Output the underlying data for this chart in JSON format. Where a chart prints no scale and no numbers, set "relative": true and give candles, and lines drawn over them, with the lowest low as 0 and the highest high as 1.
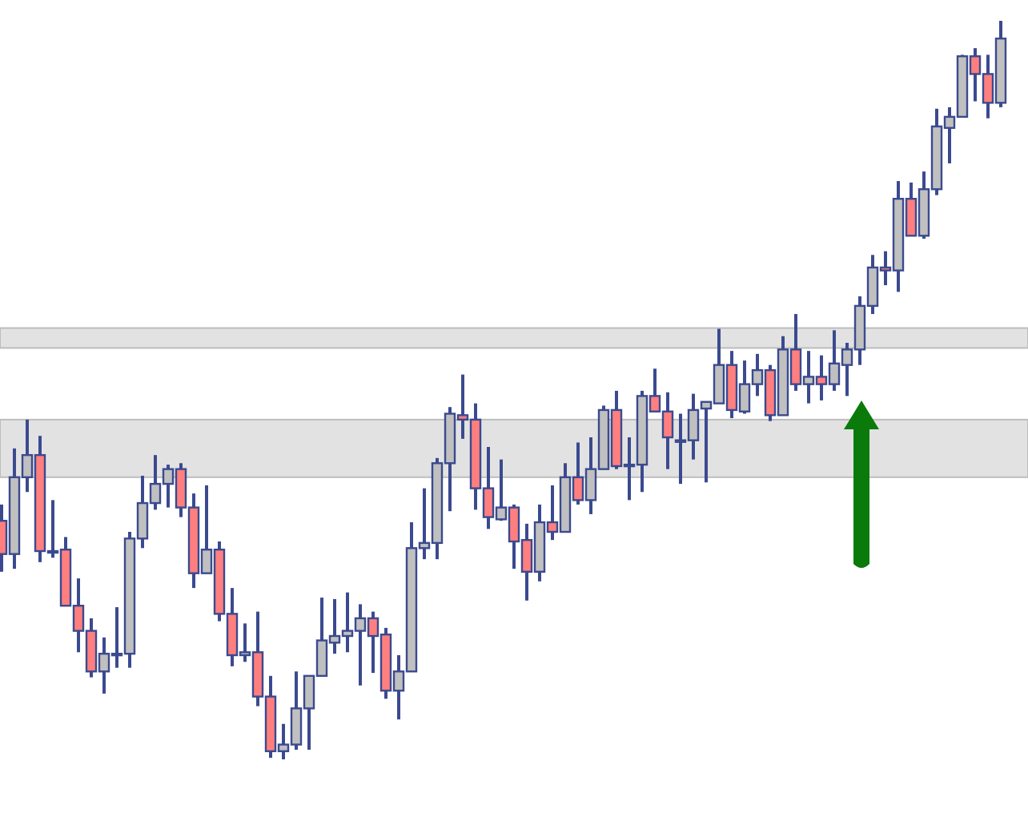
{
  "chart_data": {
    "type": "candlestick",
    "relative": true,
    "categories": [
      null,
      null,
      null,
      null,
      null,
      null,
      null,
      null,
      null,
      null,
      null,
      null,
      null,
      null,
      null,
      null,
      null,
      null,
      null,
      null,
      null,
      null,
      null,
      null,
      null,
      null,
      null,
      null,
      null,
      null,
      null,
      null,
      null,
      null,
      null,
      null,
      null,
      null,
      null,
      null,
      null,
      null,
      null,
      null,
      null,
      null,
      null,
      null,
      null,
      null,
      null,
      null,
      null,
      null,
      null,
      null,
      null,
      null,
      null,
      null,
      null,
      null,
      null,
      null,
      null,
      null,
      null,
      null,
      null,
      null,
      null,
      null,
      null,
      null,
      null,
      null,
      null,
      null,
      null
    ],
    "ohlc": [
      [
        0.323,
        0.345,
        0.254,
        0.278
      ],
      [
        0.278,
        0.421,
        0.258,
        0.382
      ],
      [
        0.382,
        0.46,
        0.362,
        0.412
      ],
      [
        0.412,
        0.438,
        0.267,
        0.282
      ],
      [
        0.282,
        0.351,
        0.273,
        0.282
      ],
      [
        0.284,
        0.301,
        0.208,
        0.208
      ],
      [
        0.208,
        0.245,
        0.145,
        0.174
      ],
      [
        0.174,
        0.191,
        0.111,
        0.119
      ],
      [
        0.119,
        0.165,
        0.089,
        0.143
      ],
      [
        0.143,
        0.206,
        0.124,
        0.143
      ],
      [
        0.143,
        0.308,
        0.124,
        0.299
      ],
      [
        0.299,
        0.384,
        0.286,
        0.347
      ],
      [
        0.347,
        0.412,
        0.338,
        0.373
      ],
      [
        0.373,
        0.399,
        0.341,
        0.393
      ],
      [
        0.393,
        0.401,
        0.328,
        0.341
      ],
      [
        0.341,
        0.36,
        0.232,
        0.252
      ],
      [
        0.252,
        0.371,
        0.252,
        0.284
      ],
      [
        0.284,
        0.295,
        0.187,
        0.197
      ],
      [
        0.197,
        0.232,
        0.126,
        0.141
      ],
      [
        0.141,
        0.184,
        0.132,
        0.145
      ],
      [
        0.145,
        0.2,
        0.072,
        0.085
      ],
      [
        0.085,
        0.113,
        0.002,
        0.011
      ],
      [
        0.011,
        0.048,
        0,
        0.02
      ],
      [
        0.02,
        0.119,
        0.013,
        0.069
      ],
      [
        0.069,
        0.113,
        0.013,
        0.113
      ],
      [
        0.113,
        0.219,
        0.113,
        0.161
      ],
      [
        0.158,
        0.217,
        0.143,
        0.167
      ],
      [
        0.167,
        0.226,
        0.145,
        0.174
      ],
      [
        0.174,
        0.21,
        0.1,
        0.191
      ],
      [
        0.191,
        0.2,
        0.117,
        0.167
      ],
      [
        0.169,
        0.178,
        0.082,
        0.093
      ],
      [
        0.093,
        0.141,
        0.054,
        0.119
      ],
      [
        0.119,
        0.321,
        0.119,
        0.286
      ],
      [
        0.286,
        0.367,
        0.271,
        0.293
      ],
      [
        0.293,
        0.408,
        0.271,
        0.401
      ],
      [
        0.401,
        0.477,
        0.336,
        0.468
      ],
      [
        0.466,
        0.521,
        0.434,
        0.46
      ],
      [
        0.46,
        0.482,
        0.338,
        0.367
      ],
      [
        0.367,
        0.423,
        0.312,
        0.328
      ],
      [
        0.325,
        0.406,
        0.323,
        0.341
      ],
      [
        0.341,
        0.345,
        0.258,
        0.295
      ],
      [
        0.297,
        0.319,
        0.215,
        0.254
      ],
      [
        0.254,
        0.345,
        0.241,
        0.321
      ],
      [
        0.321,
        0.371,
        0.297,
        0.308
      ],
      [
        0.308,
        0.401,
        0.308,
        0.382
      ],
      [
        0.382,
        0.429,
        0.345,
        0.351
      ],
      [
        0.351,
        0.436,
        0.332,
        0.393
      ],
      [
        0.393,
        0.479,
        0.393,
        0.473
      ],
      [
        0.473,
        0.499,
        0.393,
        0.397
      ],
      [
        0.399,
        0.436,
        0.351,
        0.399
      ],
      [
        0.399,
        0.499,
        0.362,
        0.492
      ],
      [
        0.492,
        0.529,
        0.471,
        0.471
      ],
      [
        0.471,
        0.497,
        0.393,
        0.436
      ],
      [
        0.432,
        0.468,
        0.373,
        0.432
      ],
      [
        0.432,
        0.495,
        0.406,
        0.473
      ],
      [
        0.475,
        0.484,
        0.375,
        0.484
      ],
      [
        0.482,
        0.583,
        0.482,
        0.534
      ],
      [
        0.534,
        0.553,
        0.462,
        0.473
      ],
      [
        0.471,
        0.54,
        0.468,
        0.508
      ],
      [
        0.508,
        0.549,
        0.492,
        0.527
      ],
      [
        0.527,
        0.534,
        0.458,
        0.466
      ],
      [
        0.466,
        0.573,
        0.466,
        0.555
      ],
      [
        0.555,
        0.603,
        0.499,
        0.508
      ],
      [
        0.508,
        0.553,
        0.482,
        0.518
      ],
      [
        0.518,
        0.547,
        0.486,
        0.508
      ],
      [
        0.508,
        0.581,
        0.499,
        0.536
      ],
      [
        0.534,
        0.564,
        0.492,
        0.555
      ],
      [
        0.555,
        0.627,
        0.534,
        0.614
      ],
      [
        0.614,
        0.683,
        0.603,
        0.666
      ],
      [
        0.666,
        0.688,
        0.642,
        0.662
      ],
      [
        0.662,
        0.783,
        0.633,
        0.759
      ],
      [
        0.759,
        0.781,
        0.709,
        0.709
      ],
      [
        0.709,
        0.796,
        0.705,
        0.772
      ],
      [
        0.772,
        0.881,
        0.764,
        0.857
      ],
      [
        0.855,
        0.883,
        0.807,
        0.87
      ],
      [
        0.87,
        0.954,
        0.87,
        0.952
      ],
      [
        0.952,
        0.963,
        0.891,
        0.928
      ],
      [
        0.928,
        0.954,
        0.868,
        0.889
      ],
      [
        0.889,
        1,
        0.883,
        0.976
      ]
    ],
    "colors": [
      "#ff7f7f",
      "#c0c0c0",
      "#c0c0c0",
      "#ff7f7f",
      "#c0c0c0",
      "#ff7f7f",
      "#ff7f7f",
      "#ff7f7f",
      "#c0c0c0",
      "#c0c0c0",
      "#c0c0c0",
      "#c0c0c0",
      "#c0c0c0",
      "#c0c0c0",
      "#ff7f7f",
      "#ff7f7f",
      "#c0c0c0",
      "#ff7f7f",
      "#ff7f7f",
      "#c0c0c0",
      "#ff7f7f",
      "#ff7f7f",
      "#c0c0c0",
      "#c0c0c0",
      "#c0c0c0",
      "#c0c0c0",
      "#c0c0c0",
      "#c0c0c0",
      "#c0c0c0",
      "#ff7f7f",
      "#ff7f7f",
      "#c0c0c0",
      "#c0c0c0",
      "#c0c0c0",
      "#c0c0c0",
      "#c0c0c0",
      "#ff7f7f",
      "#ff7f7f",
      "#ff7f7f",
      "#c0c0c0",
      "#ff7f7f",
      "#ff7f7f",
      "#c0c0c0",
      "#ff7f7f",
      "#c0c0c0",
      "#ff7f7f",
      "#c0c0c0",
      "#c0c0c0",
      "#ff7f7f",
      "#c0c0c0",
      "#c0c0c0",
      "#ff7f7f",
      "#ff7f7f",
      "#c0c0c0",
      "#c0c0c0",
      "#c0c0c0",
      "#c0c0c0",
      "#ff7f7f",
      "#c0c0c0",
      "#c0c0c0",
      "#ff7f7f",
      "#c0c0c0",
      "#ff7f7f",
      "#c0c0c0",
      "#ff7f7f",
      "#c0c0c0",
      "#c0c0c0",
      "#c0c0c0",
      "#c0c0c0",
      "#ff7f7f",
      "#c0c0c0",
      "#ff7f7f",
      "#c0c0c0",
      "#c0c0c0",
      "#c0c0c0",
      "#c0c0c0",
      "#ff7f7f",
      "#ff7f7f",
      "#c0c0c0"
    ],
    "bands": [
      {
        "axis": "y",
        "from": 0.382,
        "to": 0.46,
        "color": "#e2e2e2"
      },
      {
        "axis": "y",
        "from": 0.557,
        "to": 0.584,
        "color": "#e2e2e2"
      }
    ]
  }
}
